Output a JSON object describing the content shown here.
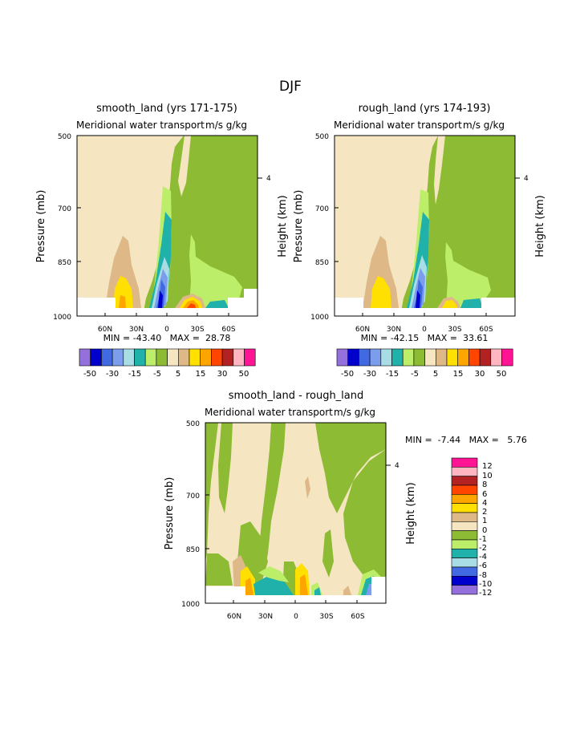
{
  "page_title": "DJF",
  "colors": {
    "c_m6": "#9370DB",
    "c_m5": "#0000CD",
    "c_m4": "#4169E1",
    "c_m3": "#7B9DEB",
    "c_m2": "#A9DDE6",
    "c_m1": "#20B2AA",
    "c_0": "#8DBB34",
    "c_n": "#BDEE6A",
    "c_p": "#F5E6C1",
    "c_1": "#DEB887",
    "c_2": "#FFE000",
    "c_3": "#FFA500",
    "c_4": "#FF4500",
    "c_5": "#B22222",
    "c_6": "#FFB6C1",
    "c_7": "#FF1493",
    "bg": "#F5E6C1"
  },
  "chart_data": [
    {
      "name": "smooth",
      "type": "contour",
      "title": "smooth_land (yrs 171-175)",
      "subtitle": "Meridional water transport",
      "units": "m/s g/kg",
      "ylabel": "Pressure (mb)",
      "ylabel_right": "Height (km)",
      "yticks": [
        "500",
        "700",
        "850",
        "1000"
      ],
      "right_tick": "4",
      "xticks": [
        "60N",
        "30N",
        "0",
        "30S",
        "60S"
      ],
      "stats": "MIN = -43.40   MAX =  28.78",
      "colorbar_labels": [
        "-50",
        "-30",
        "-15",
        "-5",
        "5",
        "15",
        "30",
        "50"
      ]
    },
    {
      "name": "rough",
      "type": "contour",
      "title": "rough_land (yrs 174-193)",
      "subtitle": "Meridional water transport",
      "units": "m/s g/kg",
      "ylabel": "Pressure (mb)",
      "ylabel_right": "Height (km)",
      "yticks": [
        "500",
        "700",
        "850",
        "1000"
      ],
      "right_tick": "4",
      "xticks": [
        "60N",
        "30N",
        "0",
        "30S",
        "60S"
      ],
      "stats": "MIN = -42.15   MAX =  33.61",
      "colorbar_labels": [
        "-50",
        "-30",
        "-15",
        "-5",
        "5",
        "15",
        "30",
        "50"
      ]
    },
    {
      "name": "diff",
      "type": "contour",
      "title": "smooth_land - rough_land",
      "subtitle": "Meridional water transport",
      "units": "m/s g/kg",
      "ylabel": "Pressure (mb)",
      "ylabel_right": "Height (km)",
      "yticks": [
        "500",
        "700",
        "850",
        "1000"
      ],
      "right_tick": "4",
      "xticks": [
        "60N",
        "30N",
        "0",
        "30S",
        "60S"
      ],
      "stats": "MIN =  -7.44   MAX =   5.76",
      "colorbar_labels": [
        "12",
        "10",
        "8",
        "6",
        "4",
        "2",
        "1",
        "0",
        "-1",
        "-2",
        "-4",
        "-6",
        "-8",
        "-10",
        "-12"
      ]
    }
  ]
}
